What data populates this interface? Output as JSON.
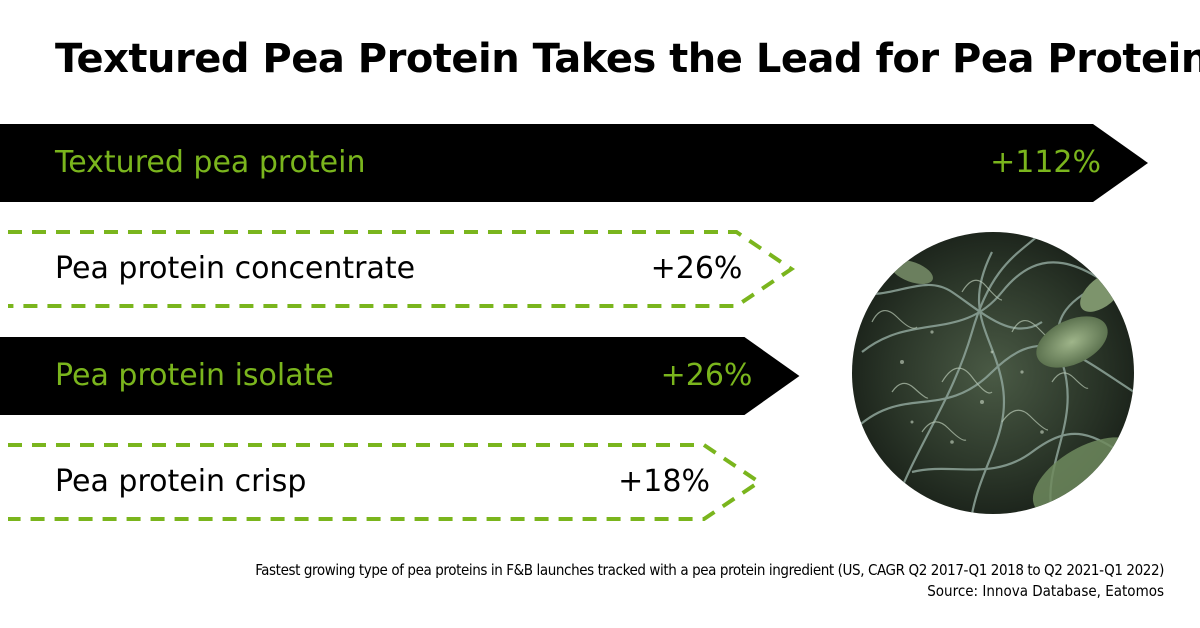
{
  "title": "Textured Pea Protein Takes the Lead for Pea Proteins",
  "footnote": "Fastest growing type of pea proteins in F&B launches tracked with a pea protein ingredient (US, CAGR Q2 2017-Q1 2018 to Q2 2021-Q1 2022)",
  "source": "Source: Innova Database, Eatomos",
  "colors": {
    "accent_green": "#7ab51d",
    "bar_black": "#000000",
    "text_black": "#000000"
  },
  "chart_data": {
    "type": "bar",
    "orientation": "horizontal",
    "title": "Textured Pea Protein Takes the Lead for Pea Proteins",
    "unit": "%",
    "xlim": [
      0,
      112
    ],
    "grid": false,
    "categories": [
      "Textured pea protein",
      "Pea protein concentrate",
      "Pea protein isolate",
      "Pea protein crisp"
    ],
    "values": [
      112,
      26,
      26,
      18
    ],
    "value_labels": [
      "+112%",
      "+26%",
      "+26%",
      "+18%"
    ],
    "styles": [
      "solid-black",
      "dashed-outline",
      "solid-black",
      "dashed-outline"
    ]
  }
}
